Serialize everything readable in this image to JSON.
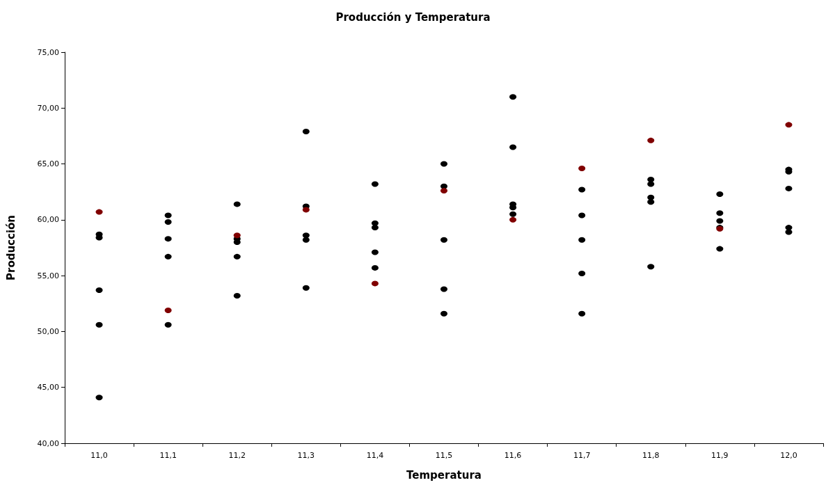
{
  "chart_data": {
    "type": "scatter",
    "title": "Producción y Temperatura",
    "xlabel": "Temperatura",
    "ylabel": "Producción",
    "categories": [
      "11,0",
      "11,1",
      "11,2",
      "11,3",
      "11,4",
      "11,5",
      "11,6",
      "11,7",
      "11,8",
      "11,9",
      "12,0"
    ],
    "ylim": [
      40,
      75
    ],
    "yticks": [
      {
        "value": 40,
        "label": "40,00"
      },
      {
        "value": 45,
        "label": "45,00"
      },
      {
        "value": 50,
        "label": "50,00"
      },
      {
        "value": 55,
        "label": "55,00"
      },
      {
        "value": 60,
        "label": "60,00"
      },
      {
        "value": 65,
        "label": "65,00"
      },
      {
        "value": 70,
        "label": "70,00"
      },
      {
        "value": 75,
        "label": "75,00"
      }
    ],
    "grid": false,
    "marker": "circle",
    "series": [
      {
        "color": "#000000",
        "x": [
          "11,0",
          "11,0",
          "11,0",
          "11,0",
          "11,0",
          "11,1",
          "11,1",
          "11,1",
          "11,1",
          "11,1",
          "11,2",
          "11,2",
          "11,2",
          "11,2",
          "11,2",
          "11,3",
          "11,3",
          "11,3",
          "11,3",
          "11,3",
          "11,4",
          "11,4",
          "11,4",
          "11,4",
          "11,4",
          "11,5",
          "11,5",
          "11,5",
          "11,5",
          "11,5",
          "11,6",
          "11,6",
          "11,6",
          "11,6",
          "11,6",
          "11,7",
          "11,7",
          "11,7",
          "11,7",
          "11,7",
          "11,8",
          "11,8",
          "11,8",
          "11,8",
          "11,8",
          "11,9",
          "11,9",
          "11,9",
          "11,9",
          "11,9",
          "12,0",
          "12,0",
          "12,0",
          "12,0",
          "12,0"
        ],
        "values": [
          58.7,
          58.4,
          53.7,
          50.6,
          44.1,
          60.4,
          59.8,
          58.3,
          56.7,
          50.6,
          61.4,
          58.3,
          58.0,
          56.7,
          53.2,
          67.9,
          61.2,
          58.6,
          58.2,
          53.9,
          63.2,
          59.7,
          59.3,
          57.1,
          55.7,
          65.0,
          63.0,
          58.2,
          53.8,
          51.6,
          71.0,
          66.5,
          61.4,
          61.1,
          60.5,
          62.7,
          60.4,
          58.2,
          55.2,
          51.6,
          63.6,
          63.2,
          62.0,
          61.6,
          55.8,
          62.3,
          60.6,
          59.9,
          59.3,
          57.4,
          64.5,
          64.3,
          62.8,
          59.3,
          58.9
        ]
      },
      {
        "color": "#800000",
        "x": [
          "11,0",
          "11,1",
          "11,2",
          "11,3",
          "11,4",
          "11,5",
          "11,6",
          "11,7",
          "11,8",
          "11,9",
          "12,0"
        ],
        "values": [
          60.7,
          51.9,
          58.6,
          60.9,
          54.3,
          62.6,
          60.0,
          64.6,
          67.1,
          59.2,
          68.5
        ]
      }
    ]
  }
}
